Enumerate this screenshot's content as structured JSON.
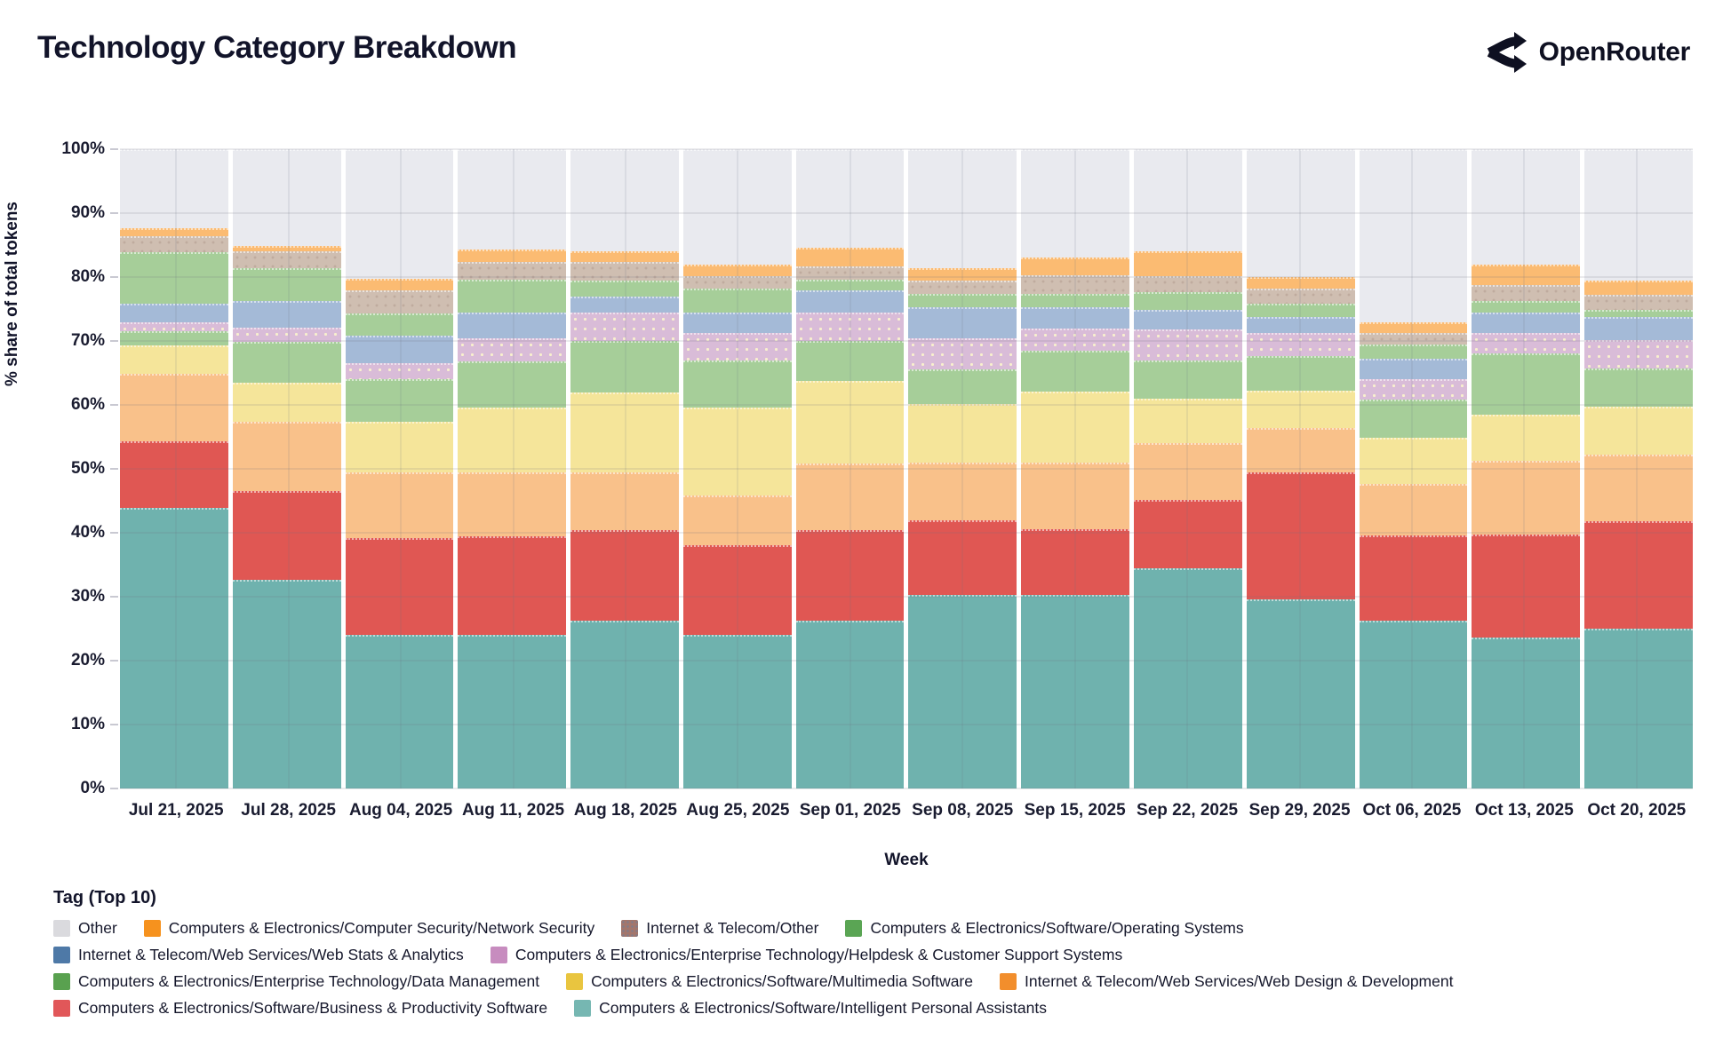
{
  "header": {
    "title": "Technology Category Breakdown",
    "brand": "OpenRouter"
  },
  "chart_data": {
    "type": "bar",
    "stacked": true,
    "x": [
      "Jul 21, 2025",
      "Jul 28, 2025",
      "Aug 04, 2025",
      "Aug 11, 2025",
      "Aug 18, 2025",
      "Aug 25, 2025",
      "Sep 01, 2025",
      "Sep 08, 2025",
      "Sep 15, 2025",
      "Sep 22, 2025",
      "Sep 29, 2025",
      "Oct 06, 2025",
      "Oct 13, 2025",
      "Oct 20, 2025"
    ],
    "xlabel": "Week",
    "ylabel": "% share of total tokens",
    "ylim": [
      0,
      100
    ],
    "yticks": [
      "0%",
      "10%",
      "20%",
      "30%",
      "40%",
      "50%",
      "60%",
      "70%",
      "80%",
      "90%",
      "100%"
    ],
    "grid": true,
    "legend_title": "Tag (Top 10)",
    "legend_position": "bottom",
    "series_note": "values are % share per week, listed bottom-to-top of stack",
    "series": [
      {
        "name": "Computers & Electronics/Software/Intelligent Personal Assistants",
        "legend_color": "#76b7b2",
        "bar_color": "#6fb2ae",
        "values": [
          43.9,
          32.7,
          24.0,
          24.0,
          26.3,
          24.0,
          26.2,
          30.3,
          30.3,
          34.5,
          29.6,
          26.2,
          23.6,
          25.0
        ]
      },
      {
        "name": "Computers & Electronics/Software/Business & Productivity Software",
        "legend_color": "#e15759",
        "bar_color": "#e05753",
        "values": [
          10.4,
          13.8,
          15.1,
          15.4,
          14.1,
          14.0,
          14.2,
          11.7,
          10.2,
          10.7,
          19.9,
          13.4,
          16.1,
          16.8
        ]
      },
      {
        "name": "Internet & Telecom/Web Services/Web Design & Development",
        "legend_color": "#f28e2c",
        "bar_color": "#f9c18a",
        "values": [
          10.5,
          10.9,
          10.3,
          10.0,
          9.0,
          7.8,
          10.4,
          9.0,
          10.5,
          8.8,
          6.9,
          8.0,
          11.5,
          10.4
        ]
      },
      {
        "name": "Computers & Electronics/Software/Multimedia Software",
        "legend_color": "#e9c53f",
        "bar_color": "#f5e59a",
        "values": [
          4.5,
          6.1,
          8.0,
          10.2,
          12.5,
          13.8,
          13.0,
          9.1,
          11.1,
          7.0,
          5.8,
          7.2,
          7.3,
          7.5
        ]
      },
      {
        "name": "Computers & Electronics/Enterprise Technology/Data Management",
        "legend_color": "#59a14f",
        "bar_color": "#a6ce99",
        "values": [
          2.3,
          6.4,
          6.7,
          7.2,
          8.1,
          7.4,
          6.2,
          5.4,
          6.4,
          6.0,
          5.4,
          6.0,
          9.6,
          6.0
        ]
      },
      {
        "name": "Computers & Electronics/Enterprise Technology/Helpdesk & Customer Support Systems",
        "legend_color": "#c78cbf",
        "bar_color": "#d9bcd8",
        "pattern": "dots-cream",
        "values": [
          1.3,
          2.2,
          2.5,
          3.6,
          4.4,
          4.2,
          4.5,
          4.9,
          3.4,
          4.8,
          3.7,
          3.2,
          3.2,
          4.5
        ]
      },
      {
        "name": "Internet & Telecom/Web Services/Web Stats & Analytics",
        "legend_color": "#4e79a7",
        "bar_color": "#a4bad7",
        "values": [
          2.9,
          4.2,
          4.2,
          4.0,
          2.5,
          3.3,
          3.4,
          4.9,
          3.4,
          3.1,
          2.5,
          3.2,
          3.1,
          3.6
        ]
      },
      {
        "name": "Computers & Electronics/Software/Operating Systems",
        "legend_color": "#5aa554",
        "bar_color": "#a6ce99",
        "values": [
          8.1,
          5.1,
          3.5,
          5.2,
          2.5,
          3.7,
          1.7,
          2.1,
          2.1,
          2.8,
          2.0,
          2.2,
          1.8,
          1.1
        ]
      },
      {
        "name": "Internet & Telecom/Other",
        "legend_color": "#a3766c",
        "legend_pattern": "dots-gray",
        "bar_color": "#cfbeb1",
        "pattern": "dots-taupe",
        "values": [
          2.5,
          2.7,
          3.6,
          2.8,
          2.9,
          1.9,
          2.1,
          2.1,
          2.9,
          2.4,
          2.4,
          1.9,
          2.6,
          2.3
        ]
      },
      {
        "name": "Computers & Electronics/Computer Security/Network Security",
        "legend_color": "#f6921e",
        "bar_color": "#fbbb72",
        "values": [
          1.3,
          0.8,
          1.8,
          1.9,
          1.8,
          1.8,
          2.9,
          1.9,
          2.7,
          4.0,
          1.8,
          1.6,
          3.1,
          2.2
        ]
      },
      {
        "name": "Other",
        "legend_color": "#dadade",
        "bar_color": "#e9eaef",
        "values": [
          12.3,
          15.1,
          20.3,
          15.7,
          15.9,
          18.1,
          15.4,
          18.6,
          17.0,
          15.9,
          20.0,
          27.1,
          18.1,
          20.6
        ]
      }
    ],
    "legend_rows": [
      [
        10,
        9,
        8,
        7
      ],
      [
        6,
        5
      ],
      [
        4,
        3,
        2
      ],
      [
        1,
        0
      ]
    ]
  },
  "colors": {
    "text": "#12142a",
    "gridline": "rgba(110,112,130,0.14)",
    "background": "#ffffff"
  }
}
